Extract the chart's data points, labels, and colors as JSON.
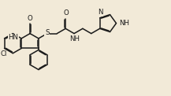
{
  "bg_color": "#f2ead8",
  "line_color": "#1a1a1a",
  "lw": 1.1,
  "font_size": 6.2,
  "figsize": [
    2.17,
    1.22
  ],
  "dpi": 100,
  "xlim": [
    0,
    10.5
  ],
  "ylim": [
    0.3,
    6.2
  ]
}
